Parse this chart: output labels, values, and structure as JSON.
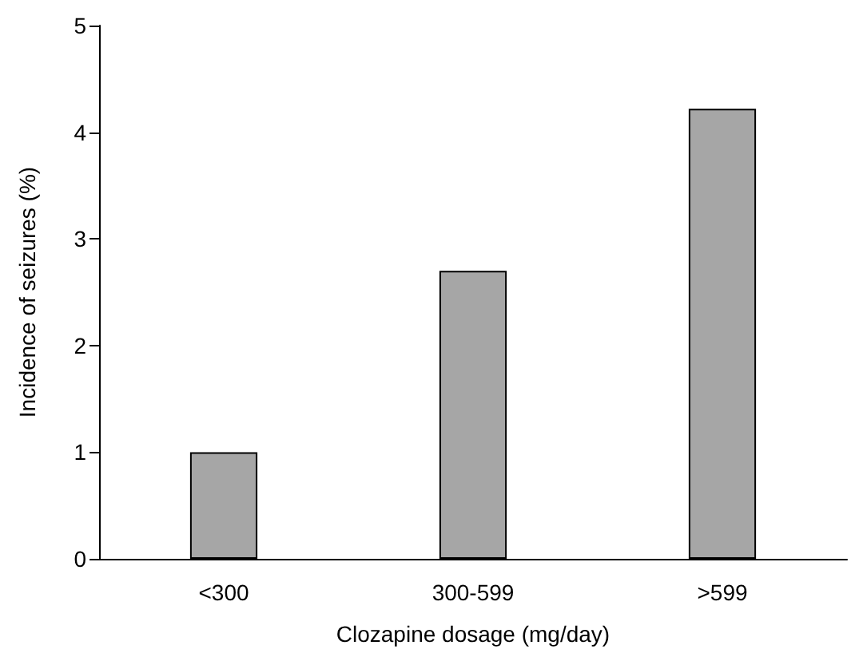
{
  "chart_data": {
    "type": "bar",
    "xlabel": "Clozapine dosage (mg/day)",
    "ylabel": "Incidence of seizures (%)",
    "categories": [
      "<300",
      "300-599",
      ">599"
    ],
    "values": [
      1.0,
      2.7,
      4.22
    ],
    "color": "#a6a6a6",
    "ylim": [
      0,
      5
    ],
    "yticks": [
      0,
      1,
      2,
      3,
      4,
      5
    ],
    "grid": false
  }
}
